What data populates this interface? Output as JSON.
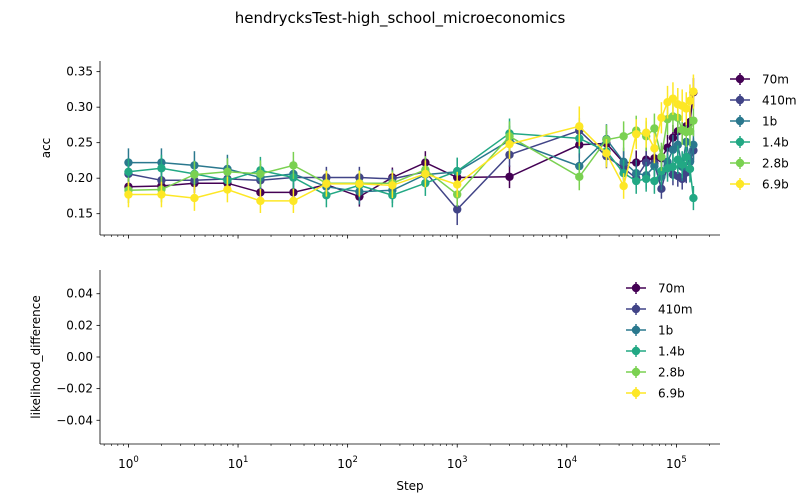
{
  "chart_data": {
    "type": "line",
    "title": "hendrycksTest-high_school_microeconomics",
    "xlabel": "Step",
    "xscale": "log",
    "xlim": [
      0.55,
      250000
    ],
    "x_ticks": [
      1,
      10,
      100,
      1000,
      10000,
      100000
    ],
    "x_tick_labels": [
      "10^0",
      "10^1",
      "10^2",
      "10^3",
      "10^4",
      "10^5"
    ],
    "colors": {
      "70m": "#440154",
      "410m": "#414487",
      "1b": "#2a788e",
      "1.4b": "#22a884",
      "2.8b": "#7ad151",
      "6.9b": "#fde725"
    },
    "steps": [
      1,
      2,
      4,
      8,
      16,
      32,
      64,
      128,
      256,
      512,
      1000,
      3000,
      13000,
      23000,
      33000,
      43000,
      53000,
      63000,
      73000,
      83000,
      93000,
      103000,
      113000,
      123000,
      133000,
      143000
    ],
    "panels": [
      {
        "ylabel": "acc",
        "ylim": [
          0.12,
          0.365
        ],
        "y_ticks": [
          0.15,
          0.2,
          0.25,
          0.3,
          0.35
        ],
        "y_tick_labels": [
          "0.15",
          "0.20",
          "0.25",
          "0.30",
          "0.35"
        ],
        "legend": [
          "70m",
          "410m",
          "1b",
          "1.4b",
          "2.8b",
          "6.9b"
        ],
        "legend_position": "outside-right",
        "series": [
          {
            "name": "70m",
            "values": [
              0.188,
              0.189,
              0.193,
              0.193,
              0.18,
              0.18,
              0.191,
              0.174,
              0.201,
              0.222,
              0.201,
              0.202,
              0.247,
              0.249,
              0.222,
              0.222,
              0.226,
              0.228,
              0.228,
              0.243,
              0.257,
              0.266,
              0.268,
              0.273,
              0.279,
              0.321
            ],
            "errors": [
              0.014,
              0.014,
              0.014,
              0.014,
              0.014,
              0.014,
              0.014,
              0.014,
              0.014,
              0.016,
              0.015,
              0.016,
              0.018,
              0.018,
              0.016,
              0.017,
              0.017,
              0.017,
              0.017,
              0.018,
              0.018,
              0.019,
              0.019,
              0.019,
              0.019,
              0.02
            ]
          },
          {
            "name": "410m",
            "values": [
              0.206,
              0.197,
              0.197,
              0.199,
              0.197,
              0.201,
              0.201,
              0.201,
              0.199,
              0.209,
              0.156,
              0.233,
              0.267,
              0.231,
              0.214,
              0.2,
              0.222,
              0.221,
              0.185,
              0.217,
              0.205,
              0.203,
              0.199,
              0.208,
              0.224,
              0.239
            ],
            "errors": [
              0.014,
              0.014,
              0.014,
              0.014,
              0.014,
              0.015,
              0.015,
              0.015,
              0.014,
              0.015,
              0.022,
              0.017,
              0.018,
              0.017,
              0.016,
              0.015,
              0.016,
              0.016,
              0.014,
              0.016,
              0.015,
              0.015,
              0.015,
              0.015,
              0.016,
              0.017
            ]
          },
          {
            "name": "1b",
            "values": [
              0.222,
              0.222,
              0.218,
              0.213,
              0.201,
              0.206,
              0.188,
              0.181,
              0.183,
              0.205,
              0.209,
              0.253,
              0.217,
              0.255,
              0.223,
              0.207,
              0.204,
              0.217,
              0.202,
              0.223,
              0.24,
              0.247,
              0.216,
              0.251,
              0.223,
              0.247
            ],
            "errors": [
              0.02,
              0.02,
              0.02,
              0.02,
              0.019,
              0.019,
              0.018,
              0.018,
              0.018,
              0.019,
              0.019,
              0.021,
              0.02,
              0.021,
              0.02,
              0.019,
              0.019,
              0.02,
              0.019,
              0.02,
              0.021,
              0.021,
              0.02,
              0.021,
              0.02,
              0.021
            ]
          },
          {
            "name": "1.4b",
            "values": [
              0.209,
              0.214,
              0.206,
              0.197,
              0.211,
              0.201,
              0.176,
              0.19,
              0.176,
              0.193,
              0.21,
              0.263,
              0.256,
              0.238,
              0.207,
              0.196,
              0.199,
              0.196,
              0.21,
              0.214,
              0.216,
              0.226,
              0.219,
              0.23,
              0.213,
              0.172
            ],
            "errors": [
              0.019,
              0.019,
              0.019,
              0.018,
              0.019,
              0.018,
              0.017,
              0.018,
              0.017,
              0.018,
              0.019,
              0.021,
              0.021,
              0.02,
              0.019,
              0.018,
              0.018,
              0.018,
              0.019,
              0.019,
              0.019,
              0.02,
              0.019,
              0.02,
              0.019,
              0.017
            ]
          },
          {
            "name": "2.8b",
            "values": [
              0.183,
              0.184,
              0.205,
              0.209,
              0.206,
              0.218,
              0.193,
              0.193,
              0.193,
              0.212,
              0.177,
              0.259,
              0.202,
              0.254,
              0.259,
              0.267,
              0.259,
              0.27,
              0.23,
              0.283,
              0.287,
              0.285,
              0.268,
              0.265,
              0.266,
              0.281
            ],
            "errors": [
              0.018,
              0.018,
              0.019,
              0.019,
              0.019,
              0.019,
              0.018,
              0.018,
              0.018,
              0.019,
              0.017,
              0.021,
              0.019,
              0.021,
              0.021,
              0.021,
              0.021,
              0.021,
              0.02,
              0.022,
              0.022,
              0.022,
              0.021,
              0.021,
              0.021,
              0.022
            ]
          },
          {
            "name": "6.9b",
            "values": [
              0.177,
              0.177,
              0.172,
              0.184,
              0.168,
              0.168,
              0.192,
              0.192,
              0.19,
              0.206,
              0.191,
              0.248,
              0.273,
              0.235,
              0.189,
              0.262,
              0.264,
              0.242,
              0.285,
              0.307,
              0.312,
              0.304,
              0.302,
              0.298,
              0.309,
              0.322
            ],
            "errors": [
              0.018,
              0.018,
              0.018,
              0.018,
              0.017,
              0.017,
              0.018,
              0.018,
              0.018,
              0.019,
              0.018,
              0.021,
              0.028,
              0.02,
              0.018,
              0.021,
              0.021,
              0.021,
              0.022,
              0.023,
              0.023,
              0.023,
              0.023,
              0.023,
              0.023,
              0.024
            ]
          }
        ]
      },
      {
        "ylabel": "likelihood_difference",
        "ylim": [
          -0.055,
          0.055
        ],
        "y_ticks": [
          -0.04,
          -0.02,
          0.0,
          0.02,
          0.04
        ],
        "y_tick_labels": [
          "−0.04",
          "−0.02",
          "0.00",
          "0.02",
          "0.04"
        ],
        "legend": [
          "70m",
          "410m",
          "1b",
          "1.4b",
          "2.8b",
          "6.9b"
        ],
        "legend_position": "upper-right",
        "series": []
      }
    ]
  }
}
